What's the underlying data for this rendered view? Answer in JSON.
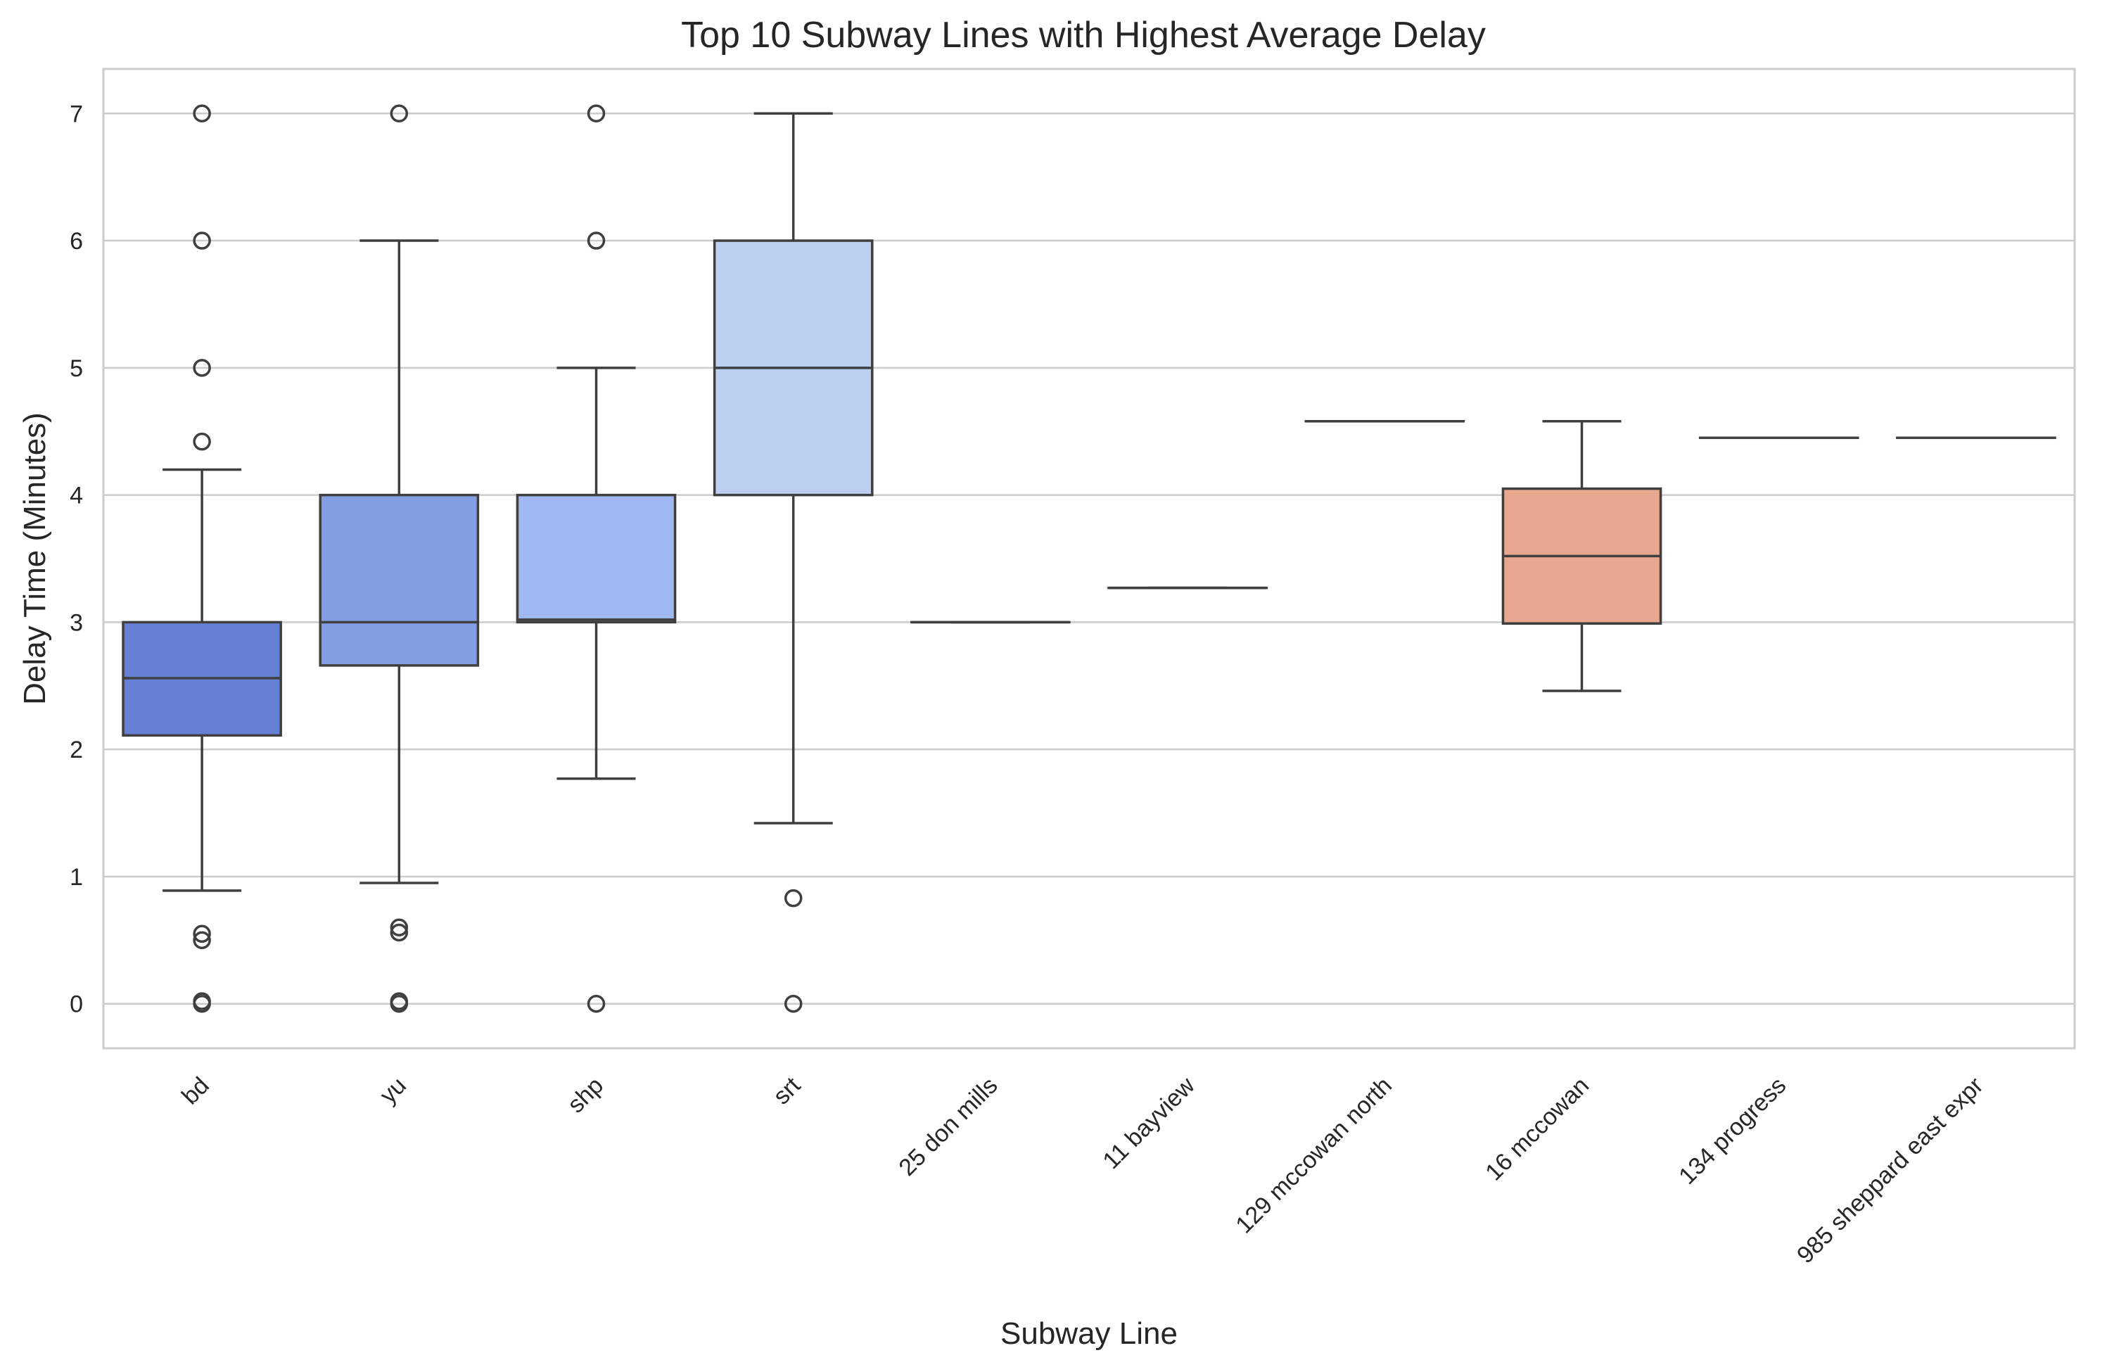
{
  "chart_data": {
    "type": "box",
    "title": "Top 10 Subway Lines with Highest Average Delay",
    "xlabel": "Subway Line",
    "ylabel": "Delay Time (Minutes)",
    "ylim": [
      -0.35,
      7.35
    ],
    "yticks": [
      0,
      1,
      2,
      3,
      4,
      5,
      6,
      7
    ],
    "grid": true,
    "categories": [
      "bd",
      "yu",
      "shp",
      "srt",
      "25 don mills",
      "11 bayview",
      "129 mccowan north",
      "16 mccowan",
      "134 progress",
      "985 sheppard east expr"
    ],
    "boxes": [
      {
        "category": "bd",
        "whisker_low": 0.89,
        "q1": 2.11,
        "median": 2.56,
        "q3": 3.0,
        "whisker_high": 4.2,
        "outliers": [
          0,
          0.02,
          0.5,
          0.55,
          4.42,
          5.0,
          6.0,
          7.0
        ],
        "color": "#6680d6"
      },
      {
        "category": "yu",
        "whisker_low": 0.95,
        "q1": 2.66,
        "median": 3.0,
        "q3": 4.0,
        "whisker_high": 6.0,
        "outliers": [
          0,
          0.02,
          0.56,
          0.6,
          7.0
        ],
        "color": "#829fe4"
      },
      {
        "category": "shp",
        "whisker_low": 1.77,
        "q1": 3.0,
        "median": 3.02,
        "q3": 4.0,
        "whisker_high": 5.0,
        "outliers": [
          0,
          6.0,
          7.0
        ],
        "color": "#9fb8f2"
      },
      {
        "category": "srt",
        "whisker_low": 1.42,
        "q1": 4.0,
        "median": 5.0,
        "q3": 6.0,
        "whisker_high": 7.0,
        "outliers": [
          0,
          0.83
        ],
        "color": "#bdd0f2"
      },
      {
        "category": "25 don mills",
        "whisker_low": 3.0,
        "q1": 3.0,
        "median": 3.0,
        "q3": 3.0,
        "whisker_high": 3.0,
        "outliers": [],
        "color": "#d7dce6"
      },
      {
        "category": "11 bayview",
        "whisker_low": 3.27,
        "q1": 3.27,
        "median": 3.27,
        "q3": 3.27,
        "whisker_high": 3.27,
        "outliers": [],
        "color": "#ecd5c8"
      },
      {
        "category": "129 mccowan north",
        "whisker_low": 4.58,
        "q1": 4.58,
        "median": 4.58,
        "q3": 4.58,
        "whisker_high": 4.58,
        "outliers": [],
        "color": "#f3c3ab"
      },
      {
        "category": "16 mccowan",
        "whisker_low": 2.46,
        "q1": 2.99,
        "median": 3.52,
        "q3": 4.05,
        "whisker_high": 4.58,
        "outliers": [],
        "color": "#e8a88f"
      },
      {
        "category": "134 progress",
        "whisker_low": 4.45,
        "q1": 4.45,
        "median": 4.45,
        "q3": 4.45,
        "whisker_high": 4.45,
        "outliers": [],
        "color": "#e0876d"
      },
      {
        "category": "985 sheppard east expr",
        "whisker_low": 4.45,
        "q1": 4.45,
        "median": 4.45,
        "q3": 4.45,
        "whisker_high": 4.45,
        "outliers": [],
        "color": "#cf6352"
      }
    ]
  }
}
